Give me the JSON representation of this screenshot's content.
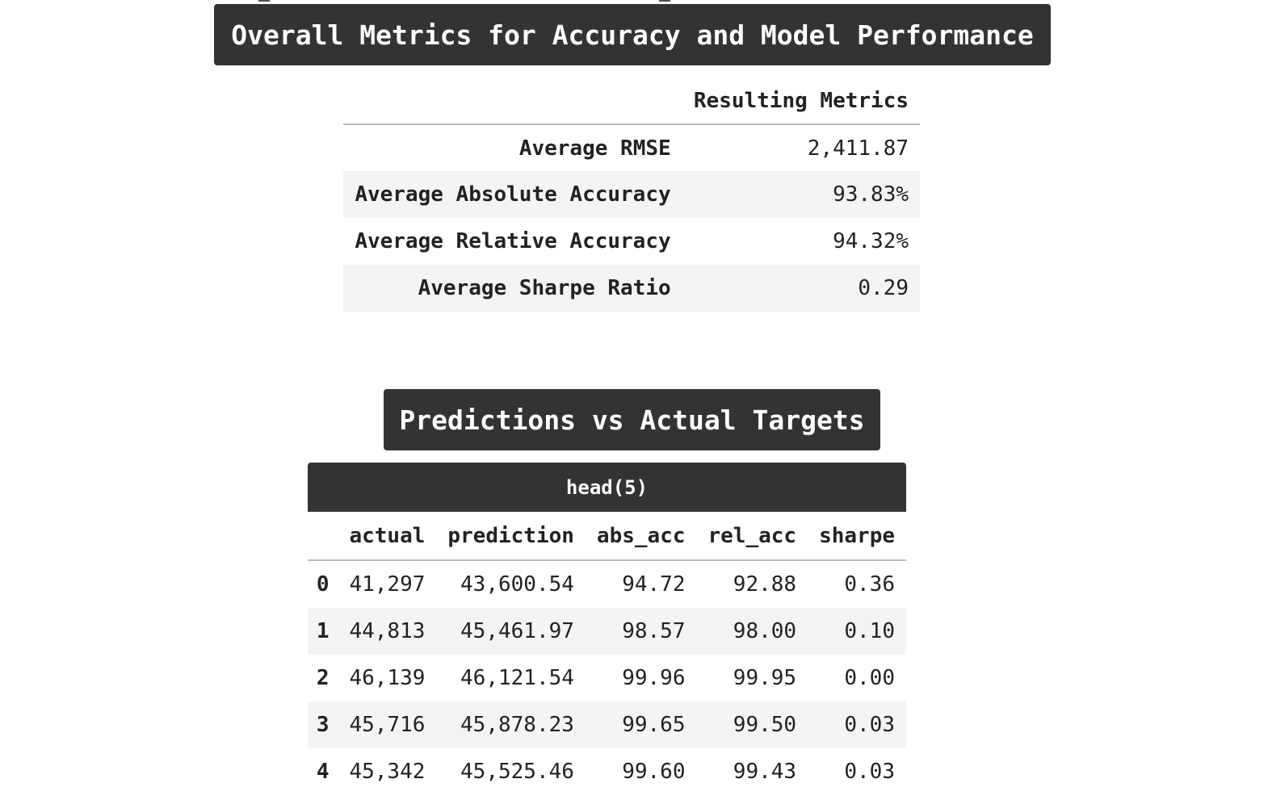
{
  "metrics_section": {
    "title": "Overall Metrics for Accuracy and Model Performance",
    "column_header": "Resulting Metrics",
    "rows": [
      {
        "label": "Average RMSE",
        "value": "2,411.87"
      },
      {
        "label": "Average Absolute Accuracy",
        "value": "93.83%"
      },
      {
        "label": "Average Relative Accuracy",
        "value": "94.32%"
      },
      {
        "label": "Average Sharpe Ratio",
        "value": "0.29"
      }
    ]
  },
  "predictions_section": {
    "title": "Predictions vs Actual Targets",
    "caption": "head(5)",
    "columns": [
      "actual",
      "prediction",
      "abs_acc",
      "rel_acc",
      "sharpe"
    ],
    "rows": [
      {
        "index": "0",
        "actual": "41,297",
        "prediction": "43,600.54",
        "abs_acc": "94.72",
        "rel_acc": "92.88",
        "sharpe": "0.36"
      },
      {
        "index": "1",
        "actual": "44,813",
        "prediction": "45,461.97",
        "abs_acc": "98.57",
        "rel_acc": "98.00",
        "sharpe": "0.10"
      },
      {
        "index": "2",
        "actual": "46,139",
        "prediction": "46,121.54",
        "abs_acc": "99.96",
        "rel_acc": "99.95",
        "sharpe": "0.00"
      },
      {
        "index": "3",
        "actual": "45,716",
        "prediction": "45,878.23",
        "abs_acc": "99.65",
        "rel_acc": "99.50",
        "sharpe": "0.03"
      },
      {
        "index": "4",
        "actual": "45,342",
        "prediction": "45,525.46",
        "abs_acc": "99.60",
        "rel_acc": "99.43",
        "sharpe": "0.03"
      }
    ]
  },
  "colors": {
    "banner_background": "#333333",
    "banner_text": "#ffffff",
    "striped_row": "#f4f4f4",
    "text": "#222222"
  }
}
